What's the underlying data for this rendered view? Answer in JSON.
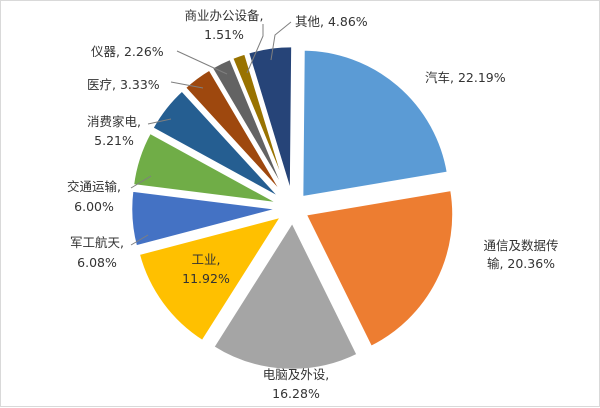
{
  "chart_data": {
    "type": "pie",
    "exploded": true,
    "slices": [
      {
        "name": "汽车",
        "value": 22.19,
        "label_line1": "汽车, 22.19%",
        "label_line2": "",
        "color": "#5b9bd5"
      },
      {
        "name": "通信及数据传输",
        "value": 20.36,
        "label_line1": "通信及数据传",
        "label_line2": "输, 20.36%",
        "color": "#ed7d31"
      },
      {
        "name": "电脑及外设",
        "value": 16.28,
        "label_line1": "电脑及外设,",
        "label_line2": "16.28%",
        "color": "#a5a5a5"
      },
      {
        "name": "工业",
        "value": 11.92,
        "label_line1": "工业,",
        "label_line2": "11.92%",
        "color": "#ffc000"
      },
      {
        "name": "军工航天",
        "value": 6.08,
        "label_line1": "军工航天,",
        "label_line2": "6.08%",
        "color": "#4472c4"
      },
      {
        "name": "交通运输",
        "value": 6.0,
        "label_line1": "交通运输,",
        "label_line2": "6.00%",
        "color": "#70ad47"
      },
      {
        "name": "消费家电",
        "value": 5.21,
        "label_line1": "消费家电,",
        "label_line2": "5.21%",
        "color": "#255e91"
      },
      {
        "name": "医疗",
        "value": 3.33,
        "label_line1": "医疗, 3.33%",
        "label_line2": "",
        "color": "#9e480e"
      },
      {
        "name": "仪器",
        "value": 2.26,
        "label_line1": "仪器, 2.26%",
        "label_line2": "",
        "color": "#636363"
      },
      {
        "name": "商业办公设备",
        "value": 1.51,
        "label_line1": "商业办公设备,",
        "label_line2": "1.51%",
        "color": "#997300"
      },
      {
        "name": "其他",
        "value": 4.86,
        "label_line1": "其他, 4.86%",
        "label_line2": "",
        "color": "#264478"
      }
    ]
  }
}
